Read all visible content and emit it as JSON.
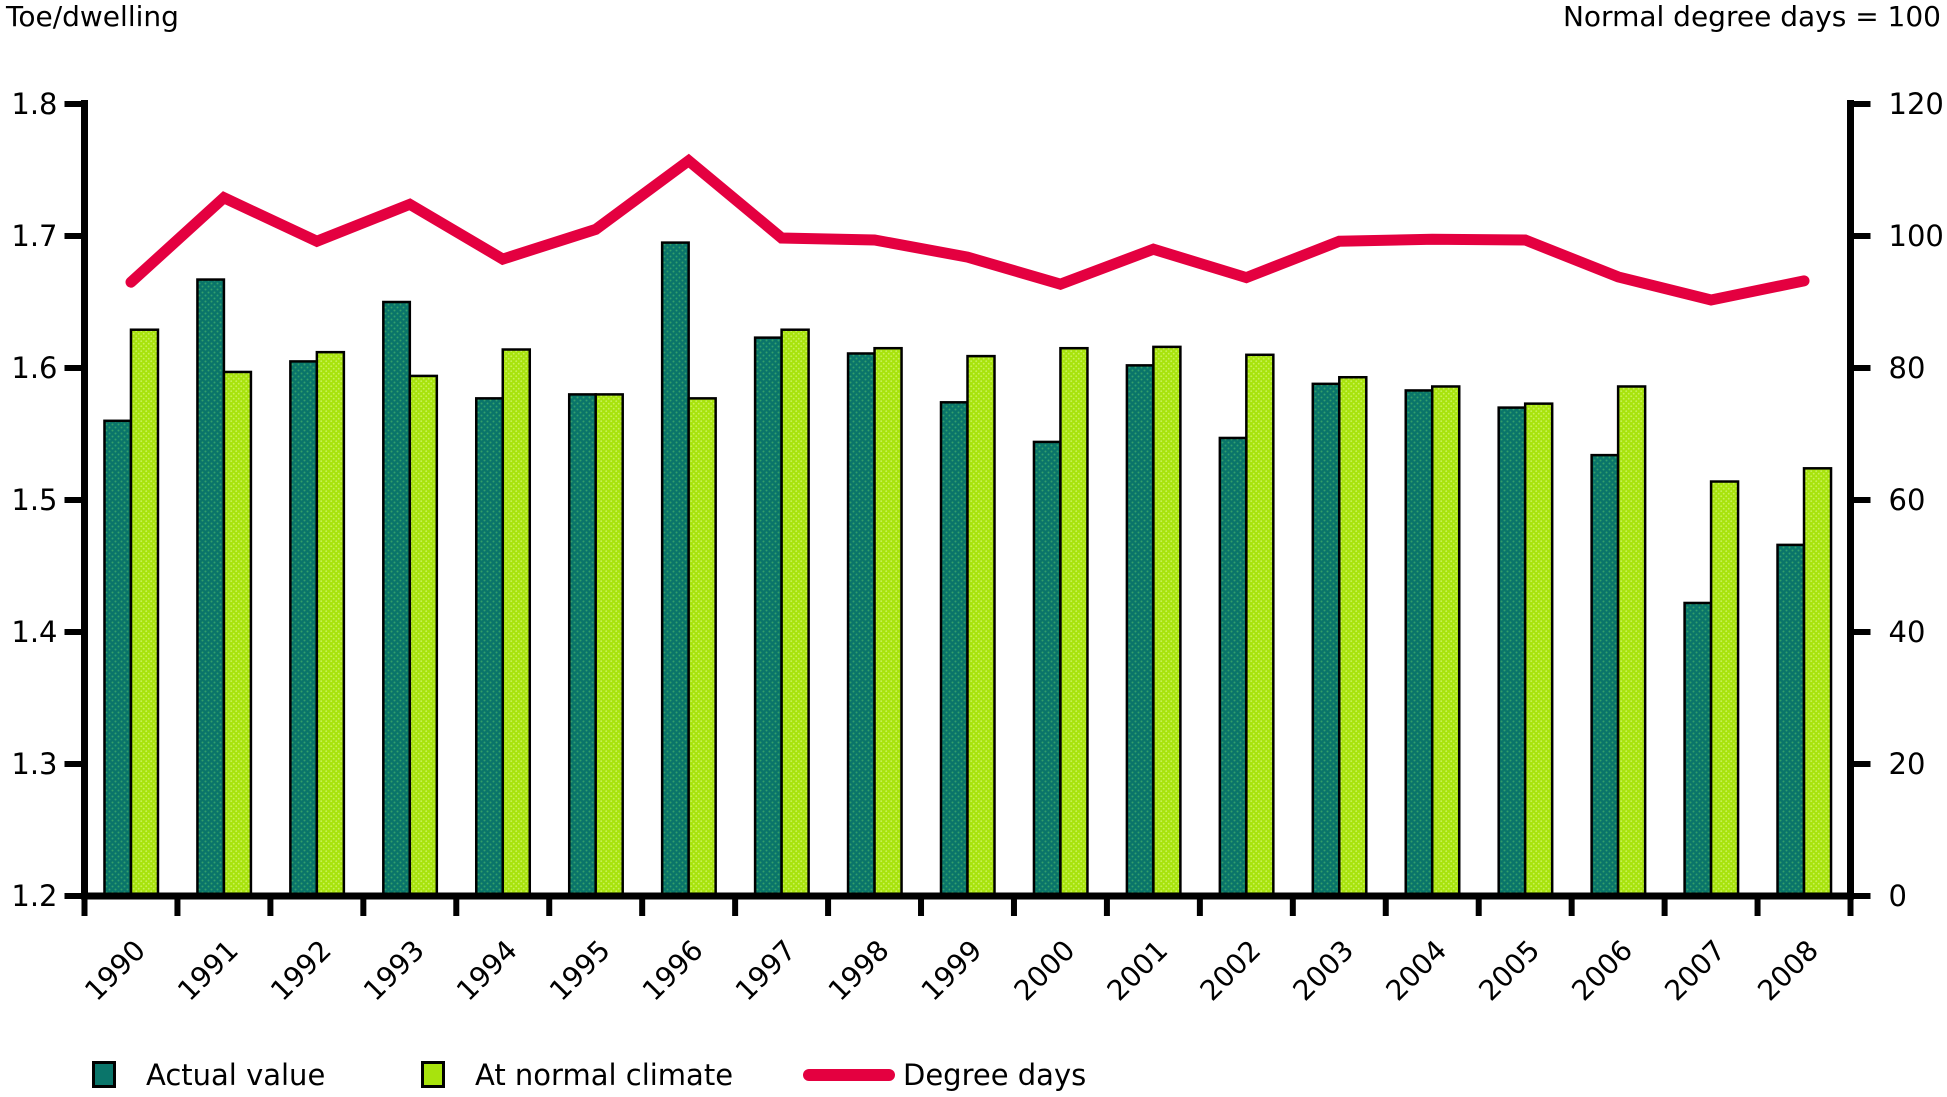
{
  "header": {
    "left_axis_title": "Toe/dwelling",
    "right_axis_title": "Normal degree days = 100"
  },
  "legend": {
    "items": [
      {
        "label": "Actual value",
        "swatch": "square",
        "color": "#0a756a"
      },
      {
        "label": "At normal climate",
        "swatch": "square",
        "color": "#a8e30d"
      },
      {
        "label": "Degree days",
        "swatch": "line",
        "color": "#e40040"
      }
    ]
  },
  "colors": {
    "actual_bar": "#0a756a",
    "actual_bar_dots": "#34a06b",
    "normal_bar": "#a8e30d",
    "normal_bar_dots": "#c9f25a",
    "degree_line": "#e40040",
    "axis": "#000000",
    "background": "#ffffff"
  },
  "chart_data": {
    "type": "bar+line",
    "categories": [
      "1990",
      "1991",
      "1992",
      "1993",
      "1994",
      "1995",
      "1996",
      "1997",
      "1998",
      "1999",
      "2000",
      "2001",
      "2002",
      "2003",
      "2004",
      "2005",
      "2006",
      "2007",
      "2008"
    ],
    "series": [
      {
        "name": "Actual value",
        "type": "bar",
        "axis": "left",
        "color": "#0a756a",
        "values": [
          1.56,
          1.667,
          1.605,
          1.65,
          1.577,
          1.58,
          1.695,
          1.623,
          1.611,
          1.574,
          1.544,
          1.602,
          1.547,
          1.588,
          1.583,
          1.57,
          1.534,
          1.422,
          1.466
        ]
      },
      {
        "name": "At normal climate",
        "type": "bar",
        "axis": "left",
        "color": "#a8e30d",
        "values": [
          1.629,
          1.597,
          1.612,
          1.594,
          1.614,
          1.58,
          1.577,
          1.629,
          1.615,
          1.609,
          1.615,
          1.616,
          1.61,
          1.593,
          1.586,
          1.573,
          1.586,
          1.514,
          1.524
        ]
      },
      {
        "name": "Degree days",
        "type": "line",
        "axis": "right",
        "color": "#e40040",
        "values": [
          93.0,
          105.8,
          99.2,
          104.8,
          96.5,
          101.0,
          111.4,
          99.7,
          99.4,
          96.8,
          92.7,
          98.0,
          93.7,
          99.2,
          99.5,
          99.4,
          93.8,
          90.3,
          93.2
        ]
      }
    ],
    "left_axis": {
      "title": "Toe/dwelling",
      "min": 1.2,
      "max": 1.8,
      "tick_labels": [
        "1.8",
        "1.7",
        "1.6",
        "1.5",
        "1.4",
        "1.3",
        "1.2"
      ]
    },
    "right_axis": {
      "title": "Normal degree days = 100",
      "min": 0,
      "max": 120,
      "tick_labels": [
        "120",
        "100",
        "80",
        "60",
        "40",
        "20",
        "0"
      ]
    },
    "grid": false,
    "legend_position": "bottom"
  }
}
